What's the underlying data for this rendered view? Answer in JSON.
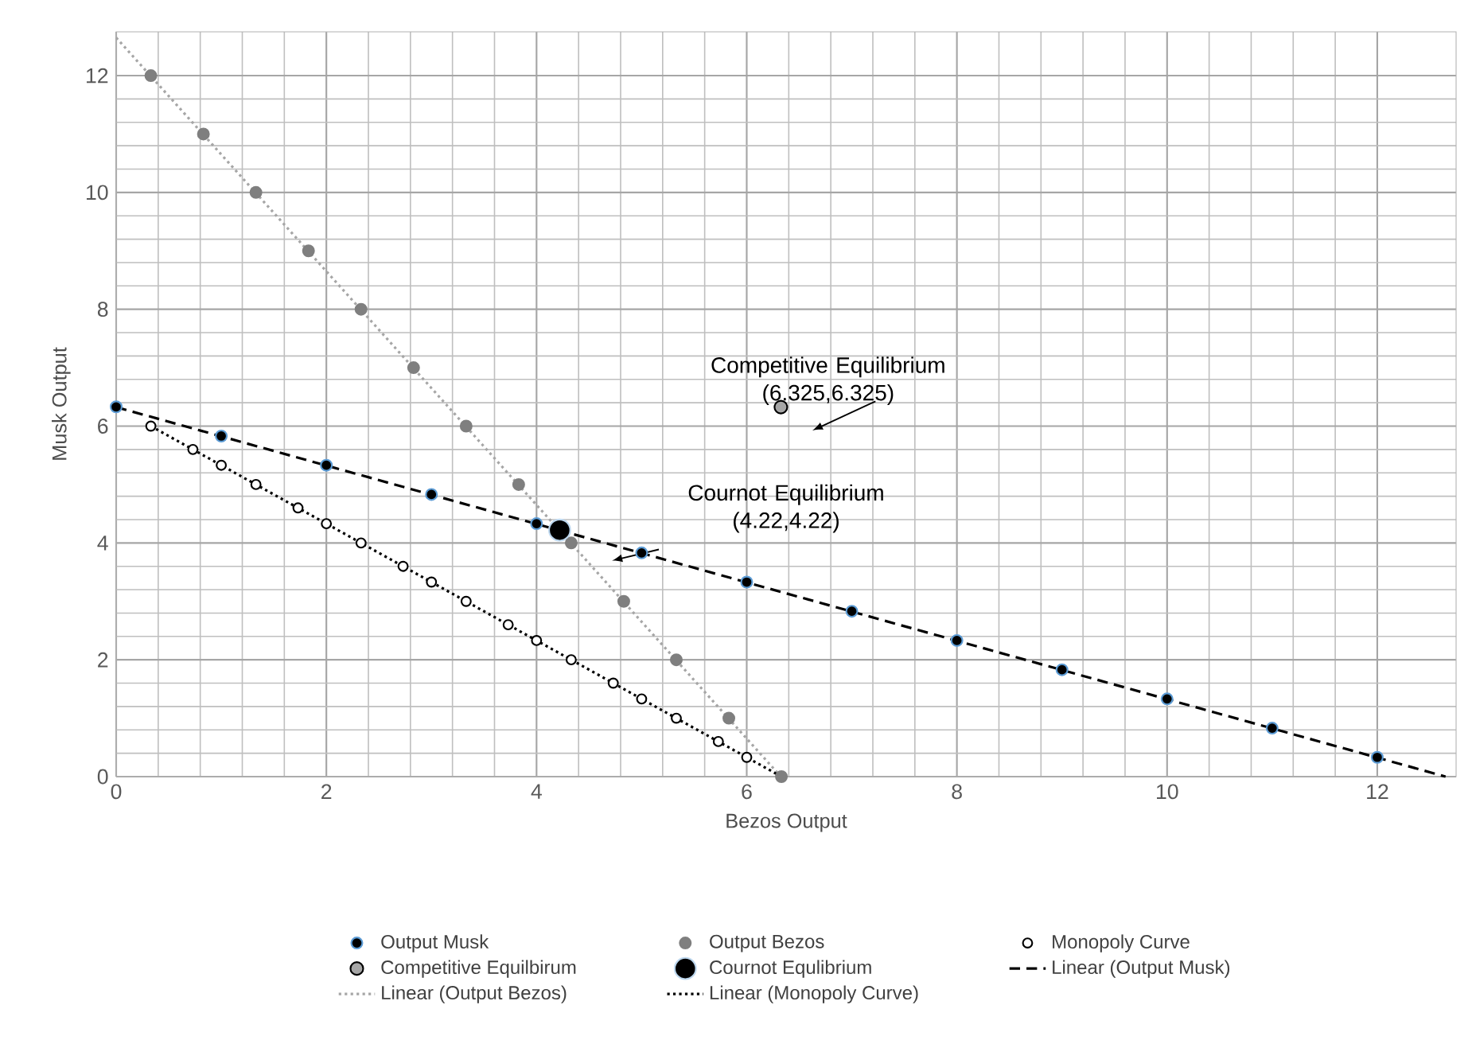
{
  "chart_data": {
    "type": "scatter",
    "xlabel": "Bezos Output",
    "ylabel": "Musk Output",
    "xlim": [
      0,
      12.75
    ],
    "ylim": [
      0,
      12.75
    ],
    "xticks": [
      0,
      2,
      4,
      6,
      8,
      10,
      12
    ],
    "yticks": [
      0,
      2,
      4,
      6,
      8,
      10,
      12
    ],
    "grid": true,
    "legend": "bottom",
    "series": [
      {
        "type": "scatter",
        "name": "Output Musk",
        "color": "#000000",
        "marker": "circle",
        "x": [
          0,
          1,
          2,
          3,
          4,
          5,
          6,
          7,
          8,
          9,
          10,
          11,
          12
        ],
        "values": [
          6.33,
          5.83,
          5.33,
          4.83,
          4.33,
          3.83,
          3.33,
          2.83,
          2.33,
          1.83,
          1.33,
          0.83,
          0.33
        ]
      },
      {
        "type": "scatter",
        "name": "Output Bezos",
        "color": "#7f7f7f",
        "marker": "circle",
        "x": [
          0.33,
          0.83,
          1.33,
          1.83,
          2.33,
          2.83,
          3.33,
          3.83,
          4.33,
          4.83,
          5.33,
          5.83,
          6.33
        ],
        "values": [
          12,
          11,
          10,
          9,
          8,
          7,
          6,
          5,
          4,
          3,
          2,
          1,
          0
        ]
      },
      {
        "type": "scatter",
        "name": "Monopoly Curve",
        "color": "#ffffff",
        "marker": "circle",
        "x": [
          0.33,
          0.73,
          1,
          1.33,
          1.73,
          2,
          2.33,
          2.73,
          3,
          3.33,
          3.73,
          4,
          4.33,
          4.73,
          5,
          5.33,
          5.73,
          6
        ],
        "values": [
          6,
          5.6,
          5.33,
          5,
          4.6,
          4.33,
          4,
          3.6,
          3.33,
          3,
          2.6,
          2.33,
          2,
          1.6,
          1.33,
          1,
          0.6,
          0.33
        ]
      },
      {
        "type": "scatter",
        "name": "Competitive Equilbirum",
        "color": "#a6a6a6",
        "marker": "circle",
        "x": [
          6.325
        ],
        "values": [
          6.325
        ]
      },
      {
        "type": "scatter",
        "name": "Cournot Equlibrium",
        "color": "#000000",
        "marker": "circle",
        "x": [
          4.22
        ],
        "values": [
          4.22
        ]
      },
      {
        "type": "line",
        "name": "Linear (Output Musk)",
        "color": "#000000",
        "line_style": "dashed",
        "marker": "none",
        "x": [
          0,
          12.65
        ],
        "values": [
          6.325,
          0
        ]
      },
      {
        "type": "line",
        "name": "Linear (Output Bezos)",
        "color": "#a6a6a6",
        "line_style": "dotted",
        "marker": "none",
        "x": [
          0,
          6.325
        ],
        "values": [
          12.65,
          0
        ]
      },
      {
        "type": "line",
        "name": "Linear (Monopoly Curve)",
        "color": "#000000",
        "line_style": "dotted",
        "marker": "none",
        "x": [
          0.33,
          6.33
        ],
        "values": [
          6,
          0
        ]
      }
    ],
    "annotations": [
      {
        "text": "Competitive Equilibrium (6.325,6.325)",
        "x": 6.325,
        "y": 6.325
      },
      "Cournot Equilibrium (4.22,4.22)"
    ]
  }
}
